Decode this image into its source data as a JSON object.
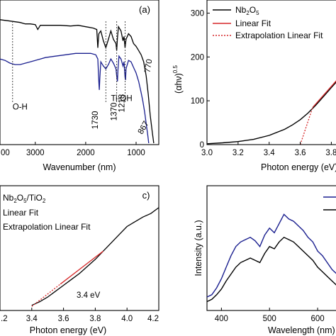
{
  "chart_data": [
    {
      "panel": "a",
      "type": "line",
      "panel_label": "(a)",
      "xlabel": "Wavenumber (nm)",
      "ylabel": "",
      "x_ticks": [
        "3000",
        "2000",
        "1000"
      ],
      "x_tick_values": [
        3000,
        2000,
        1000
      ],
      "x_tick_partial_left": "00",
      "xlim": [
        3700,
        550
      ],
      "ylim": [
        0,
        100
      ],
      "series": [
        {
          "color": "#000000",
          "points": [
            [
              3700,
              88
            ],
            [
              3500,
              87
            ],
            [
              3300,
              86
            ],
            [
              3200,
              85
            ],
            [
              3100,
              85
            ],
            [
              3000,
              84.5
            ],
            [
              2950,
              81
            ],
            [
              2900,
              84
            ],
            [
              2700,
              84
            ],
            [
              2500,
              84
            ],
            [
              2300,
              83.5
            ],
            [
              2150,
              84
            ],
            [
              2000,
              83
            ],
            [
              1850,
              82
            ],
            [
              1780,
              81
            ],
            [
              1760,
              68
            ],
            [
              1740,
              78
            ],
            [
              1700,
              80
            ],
            [
              1650,
              73
            ],
            [
              1600,
              68
            ],
            [
              1550,
              74
            ],
            [
              1500,
              80
            ],
            [
              1450,
              74
            ],
            [
              1400,
              71
            ],
            [
              1385,
              66
            ],
            [
              1370,
              75
            ],
            [
              1350,
              83
            ],
            [
              1300,
              80
            ],
            [
              1260,
              73
            ],
            [
              1240,
              76
            ],
            [
              1220,
              68
            ],
            [
              1200,
              74
            ],
            [
              1150,
              78
            ],
            [
              1100,
              76
            ],
            [
              1050,
              71
            ],
            [
              1000,
              69
            ],
            [
              950,
              66
            ],
            [
              900,
              63
            ],
            [
              850,
              58
            ],
            [
              800,
              48
            ],
            [
              760,
              35
            ],
            [
              720,
              20
            ],
            [
              680,
              8
            ],
            [
              650,
              0
            ]
          ]
        },
        {
          "color": "#1a1f8f",
          "points": [
            [
              3700,
              60
            ],
            [
              3600,
              59
            ],
            [
              3500,
              57
            ],
            [
              3400,
              56
            ],
            [
              3300,
              56
            ],
            [
              3200,
              57
            ],
            [
              3100,
              58
            ],
            [
              3000,
              59
            ],
            [
              2900,
              60
            ],
            [
              2800,
              61
            ],
            [
              2600,
              62
            ],
            [
              2400,
              63
            ],
            [
              2200,
              64
            ],
            [
              2000,
              64
            ],
            [
              1900,
              64
            ],
            [
              1800,
              63
            ],
            [
              1760,
              60
            ],
            [
              1740,
              44
            ],
            [
              1730,
              38
            ],
            [
              1720,
              46
            ],
            [
              1700,
              58
            ],
            [
              1650,
              55
            ],
            [
              1600,
              53
            ],
            [
              1550,
              56
            ],
            [
              1500,
              60
            ],
            [
              1450,
              57
            ],
            [
              1400,
              53
            ],
            [
              1385,
              48
            ],
            [
              1370,
              44
            ],
            [
              1360,
              52
            ],
            [
              1340,
              62
            ],
            [
              1300,
              60
            ],
            [
              1260,
              55
            ],
            [
              1240,
              58
            ],
            [
              1220,
              47
            ],
            [
              1210,
              45
            ],
            [
              1200,
              53
            ],
            [
              1150,
              59
            ],
            [
              1100,
              58
            ],
            [
              1050,
              54
            ],
            [
              1000,
              50
            ],
            [
              950,
              44
            ],
            [
              900,
              36
            ],
            [
              867,
              30
            ],
            [
              830,
              22
            ],
            [
              800,
              14
            ],
            [
              770,
              6
            ],
            [
              750,
              0
            ]
          ]
        }
      ],
      "annotations": [
        {
          "text": "O-H",
          "x": 3450,
          "y": 24
        },
        {
          "text": "Ti-OH",
          "x": 1500,
          "y": 30
        },
        {
          "text": "1730",
          "x": 1760,
          "y": 10,
          "rotate": -90
        },
        {
          "text": "1370",
          "x": 1390,
          "y": 16,
          "rotate": -90
        },
        {
          "text": "1218",
          "x": 1230,
          "y": 22,
          "rotate": -90
        },
        {
          "text": "867",
          "x": 880,
          "y": 6,
          "rotate": -60
        },
        {
          "text": "770",
          "x": 730,
          "y": 50,
          "rotate": -80
        }
      ],
      "dashed_markers": [
        3450,
        1600,
        1385,
        1218
      ]
    },
    {
      "panel": "b",
      "type": "line",
      "xlabel": "Photon energy (eV)",
      "ylabel": "(αhν)^0.5",
      "ylabel_base": "(αhν)",
      "ylabel_exp": "0.5",
      "x_ticks": [
        "3.0",
        "3.2",
        "3.4",
        "3.6",
        "3.8"
      ],
      "x_tick_values": [
        3.0,
        3.2,
        3.4,
        3.6,
        3.8
      ],
      "y_ticks": [
        "0",
        "100",
        "200",
        "300"
      ],
      "y_tick_values": [
        0,
        100,
        200,
        300
      ],
      "xlim": [
        3.0,
        3.88
      ],
      "ylim": [
        0,
        330
      ],
      "legend": [
        {
          "label": "Nb2O5",
          "label_main": "Nb",
          "sub1": "2",
          "mid": "O",
          "sub2": "5",
          "color": "#000000",
          "style": "solid"
        },
        {
          "label": "Linear Fit",
          "color": "#d62728",
          "style": "solid"
        },
        {
          "label": "Extrapolation Linear Fit",
          "color": "#d62728",
          "style": "dotted"
        }
      ],
      "series": [
        {
          "name": "Nb2O5",
          "color": "#000000",
          "x": [
            3.0,
            3.1,
            3.2,
            3.3,
            3.4,
            3.5,
            3.55,
            3.6,
            3.65,
            3.7,
            3.75,
            3.8,
            3.85,
            3.88
          ],
          "y": [
            2,
            4,
            7,
            12,
            21,
            35,
            45,
            57,
            72,
            90,
            110,
            130,
            150,
            160
          ]
        },
        {
          "name": "Linear Fit",
          "color": "#d62728",
          "x": [
            3.68,
            3.88
          ],
          "y": [
            85,
            165
          ]
        },
        {
          "name": "Extrapolation Linear Fit",
          "color": "#d62728",
          "x": [
            3.6,
            3.68
          ],
          "y": [
            0,
            85
          ]
        }
      ]
    },
    {
      "panel": "c",
      "type": "line",
      "panel_label": "c)",
      "xlabel": "Photon energy (eV)",
      "ylabel": "",
      "x_ticks": [
        ".2",
        "3.4",
        "3.6",
        "3.8",
        "4.0",
        "4.2"
      ],
      "x_tick_values": [
        3.2,
        3.4,
        3.6,
        3.8,
        4.0,
        4.2
      ],
      "xlim": [
        3.2,
        4.2
      ],
      "ylim": [
        0,
        100
      ],
      "legend": [
        {
          "label": "Nb2O5/TiO2",
          "color": "#000000",
          "style": "solid"
        },
        {
          "label": "Linear Fit",
          "color": "#d62728",
          "style": "solid"
        },
        {
          "label": "Extrapolation Linear Fit",
          "color": "#d62728",
          "style": "dotted"
        }
      ],
      "legend_title": {
        "t1": "Nb",
        "s1": "2",
        "t2": "O",
        "s2": "5",
        "t3": "/TiO",
        "s3": "2"
      },
      "annotation": "3.4 eV",
      "series": [
        {
          "name": "Nb2O5/TiO2",
          "color": "#000000",
          "x": [
            3.4,
            3.45,
            3.5,
            3.55,
            3.6,
            3.65,
            3.7,
            3.75,
            3.8,
            3.85,
            3.9,
            3.95,
            4.0,
            4.05,
            4.1,
            4.15,
            4.2
          ],
          "y": [
            2,
            5,
            9,
            14,
            19,
            24,
            29,
            35,
            41,
            48,
            55,
            62,
            69,
            73,
            77,
            80,
            85
          ]
        },
        {
          "name": "Linear Fit",
          "color": "#d62728",
          "x": [
            3.58,
            3.85
          ],
          "y": [
            20,
            48
          ]
        },
        {
          "name": "Extrapolation Linear Fit",
          "color": "#d62728",
          "x": [
            3.4,
            3.58
          ],
          "y": [
            1,
            20
          ]
        }
      ]
    },
    {
      "panel": "d",
      "type": "line",
      "xlabel": "Wavelength (nm)",
      "ylabel": "Intensity (a.u.)",
      "x_ticks": [
        "400",
        "500",
        "600"
      ],
      "x_tick_values": [
        400,
        500,
        600
      ],
      "xlim": [
        370,
        650
      ],
      "ylim": [
        0,
        100
      ],
      "legend": [
        {
          "label": "",
          "color": "#1a1f8f",
          "style": "solid"
        },
        {
          "label": "",
          "color": "#000000",
          "style": "solid"
        }
      ],
      "series": [
        {
          "color": "#1a1f8f",
          "x": [
            370,
            380,
            390,
            400,
            410,
            420,
            430,
            440,
            450,
            460,
            470,
            480,
            490,
            500,
            510,
            520,
            530,
            540,
            550,
            560,
            570,
            580,
            590,
            600,
            610,
            620,
            630,
            640,
            650
          ],
          "y": [
            8,
            10,
            16,
            24,
            34,
            44,
            52,
            56,
            58,
            60,
            57,
            52,
            62,
            68,
            64,
            72,
            80,
            76,
            74,
            70,
            66,
            60,
            56,
            48,
            44,
            38,
            32,
            28,
            24
          ]
        },
        {
          "color": "#000000",
          "x": [
            370,
            380,
            390,
            400,
            410,
            420,
            430,
            440,
            450,
            460,
            470,
            480,
            490,
            500,
            510,
            520,
            530,
            540,
            550,
            560,
            570,
            580,
            590,
            600,
            610,
            620,
            630,
            640,
            650
          ],
          "y": [
            4,
            6,
            10,
            15,
            22,
            28,
            34,
            38,
            40,
            42,
            40,
            38,
            46,
            52,
            50,
            56,
            60,
            58,
            56,
            52,
            48,
            44,
            40,
            34,
            30,
            26,
            22,
            18,
            15
          ]
        }
      ]
    }
  ]
}
